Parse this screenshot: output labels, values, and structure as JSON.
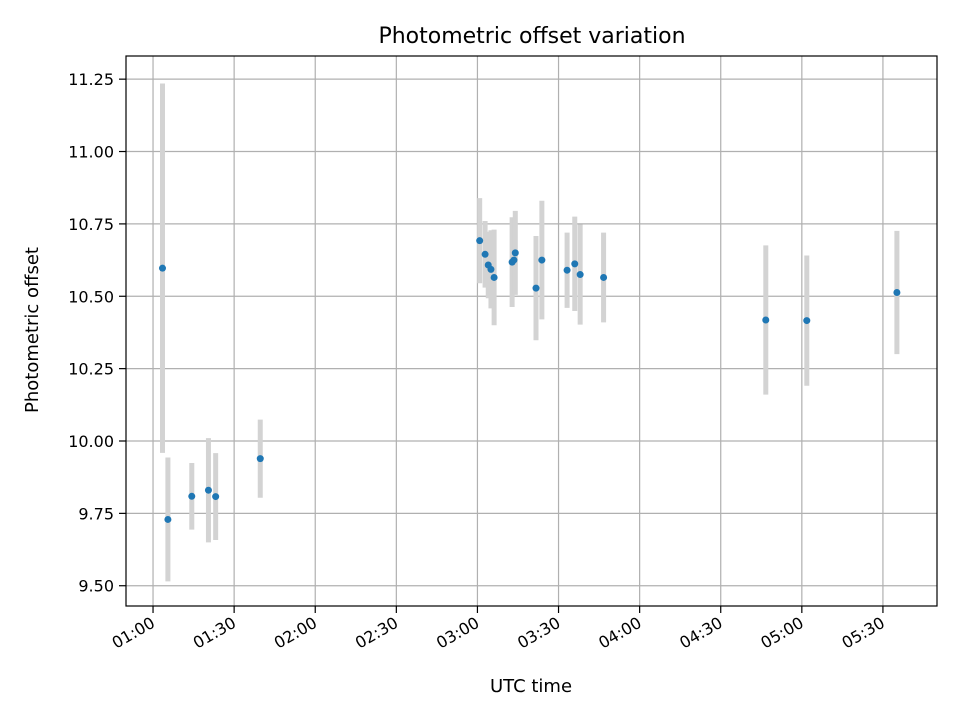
{
  "chart_data": {
    "type": "scatter",
    "title": "Photometric offset variation",
    "xlabel": "UTC time",
    "ylabel": "Photometric offset",
    "xlim": [
      "00:50",
      "05:50"
    ],
    "ylim": [
      9.43,
      11.33
    ],
    "x_ticks": [
      "01:00",
      "01:30",
      "02:00",
      "02:30",
      "03:00",
      "03:30",
      "04:00",
      "04:30",
      "05:00",
      "05:30"
    ],
    "y_ticks": [
      "9.50",
      "9.75",
      "10.00",
      "10.25",
      "10.50",
      "10.75",
      "11.00",
      "11.25"
    ],
    "grid": true,
    "error_bars": true,
    "series": [
      {
        "points": [
          {
            "t": "01:03:30",
            "y": 10.597,
            "err": 0.638
          },
          {
            "t": "01:05:30",
            "y": 9.729,
            "err": 0.214
          },
          {
            "t": "01:14:20",
            "y": 9.809,
            "err": 0.115
          },
          {
            "t": "01:20:30",
            "y": 9.83,
            "err": 0.18
          },
          {
            "t": "01:23:10",
            "y": 9.808,
            "err": 0.15
          },
          {
            "t": "01:39:40",
            "y": 9.939,
            "err": 0.135
          },
          {
            "t": "03:00:50",
            "y": 10.692,
            "err": 0.147
          },
          {
            "t": "03:02:50",
            "y": 10.645,
            "err": 0.115
          },
          {
            "t": "03:04:00",
            "y": 10.608,
            "err": 0.115
          },
          {
            "t": "03:05:00",
            "y": 10.593,
            "err": 0.135
          },
          {
            "t": "03:06:10",
            "y": 10.565,
            "err": 0.165
          },
          {
            "t": "03:12:50",
            "y": 10.618,
            "err": 0.155
          },
          {
            "t": "03:13:30",
            "y": 10.625,
            "err": 0.115
          },
          {
            "t": "03:14:00",
            "y": 10.65,
            "err": 0.145
          },
          {
            "t": "03:21:40",
            "y": 10.528,
            "err": 0.18
          },
          {
            "t": "03:23:50",
            "y": 10.625,
            "err": 0.205
          },
          {
            "t": "03:33:10",
            "y": 10.59,
            "err": 0.13
          },
          {
            "t": "03:36:00",
            "y": 10.612,
            "err": 0.163
          },
          {
            "t": "03:38:00",
            "y": 10.575,
            "err": 0.173
          },
          {
            "t": "03:46:40",
            "y": 10.565,
            "err": 0.155
          },
          {
            "t": "04:46:40",
            "y": 10.418,
            "err": 0.258
          },
          {
            "t": "05:01:50",
            "y": 10.416,
            "err": 0.225
          },
          {
            "t": "05:35:10",
            "y": 10.513,
            "err": 0.213
          }
        ],
        "marker_color": "#1f77b4",
        "errorbar_color": "#d3d3d3"
      }
    ]
  }
}
